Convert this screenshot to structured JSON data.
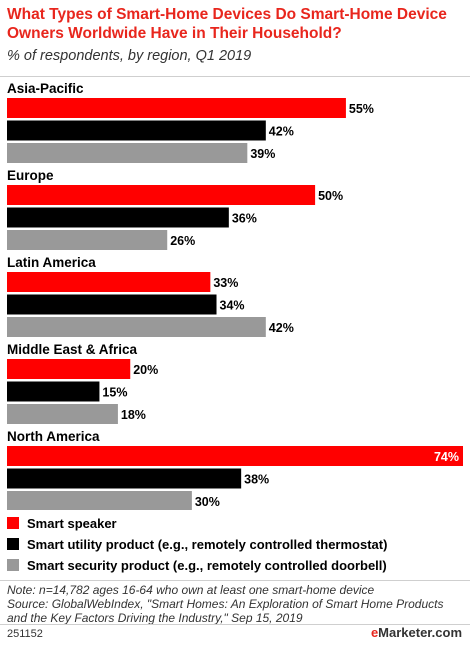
{
  "title": "What Types of Smart-Home Devices Do Smart-Home Device Owners Worldwide Have in Their Household?",
  "subtitle": "% of respondents, by region, Q1 2019",
  "colors": {
    "accent": "#e8261d",
    "speaker": "#ff0000",
    "utility": "#000000",
    "security": "#999999"
  },
  "chart_data": {
    "type": "bar",
    "orientation": "horizontal",
    "categories": [
      "Asia-Pacific",
      "Europe",
      "Latin America",
      "Middle East & Africa",
      "North America"
    ],
    "series": [
      {
        "name": "Smart speaker",
        "values": [
          55,
          50,
          33,
          20,
          74
        ]
      },
      {
        "name": "Smart utility product (e.g., remotely controlled thermostat)",
        "values": [
          42,
          36,
          34,
          15,
          38
        ]
      },
      {
        "name": "Smart security product (e.g., remotely controlled doorbell)",
        "values": [
          39,
          26,
          42,
          18,
          30
        ]
      }
    ],
    "value_suffix": "%",
    "xlim": [
      0,
      74
    ],
    "grid": false,
    "legend_position": "bottom-left"
  },
  "note": "Note: n=14,782 ages 16-64 who own at least one smart-home device",
  "source": "Source: GlobalWebIndex, \"Smart Homes: An Exploration of Smart Home Products and the Key Factors Driving the Industry,\" Sep 15, 2019",
  "footer": {
    "id": "251152",
    "brand_e": "e",
    "brand_rest": "Marketer",
    "brand_suffix": ".com"
  }
}
